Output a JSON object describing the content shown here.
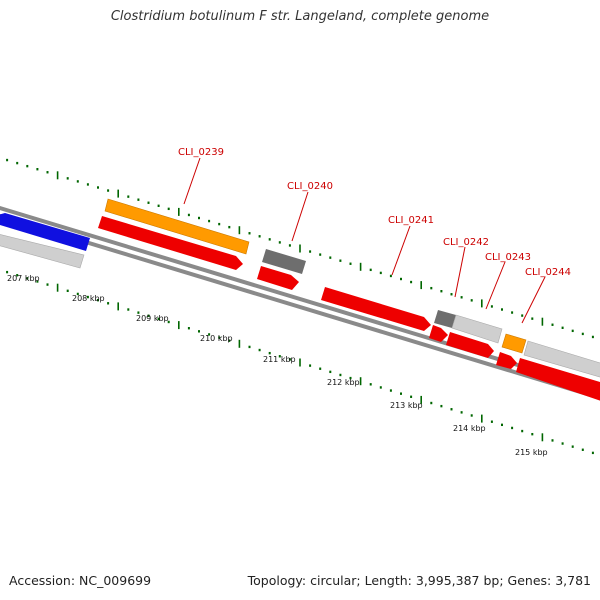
{
  "title": "Clostridium botulinum F str. Langeland, complete genome",
  "footer": {
    "accession": "Accession: NC_009699",
    "topology": "Topology: circular; Length: 3,995,387 bp; Genes: 3,781"
  },
  "scale_labels": [
    "207 kbp",
    "208 kbp",
    "209 kbp",
    "210 kbp",
    "211 kbp",
    "212 kbp",
    "213 kbp",
    "214 kbp",
    "215 kbp"
  ],
  "gene_labels": [
    "CLI_0239",
    "CLI_0240",
    "CLI_0241",
    "CLI_0242",
    "CLI_0243",
    "CLI_0244"
  ],
  "colors": {
    "orange": "#ff9a00",
    "blue": "#1010e0",
    "red": "#ee0000",
    "light_gray": "#c8c8c8",
    "dark_gray": "#707070",
    "backbone": "#888888",
    "tick": "#006600",
    "label": "#cc0000"
  }
}
